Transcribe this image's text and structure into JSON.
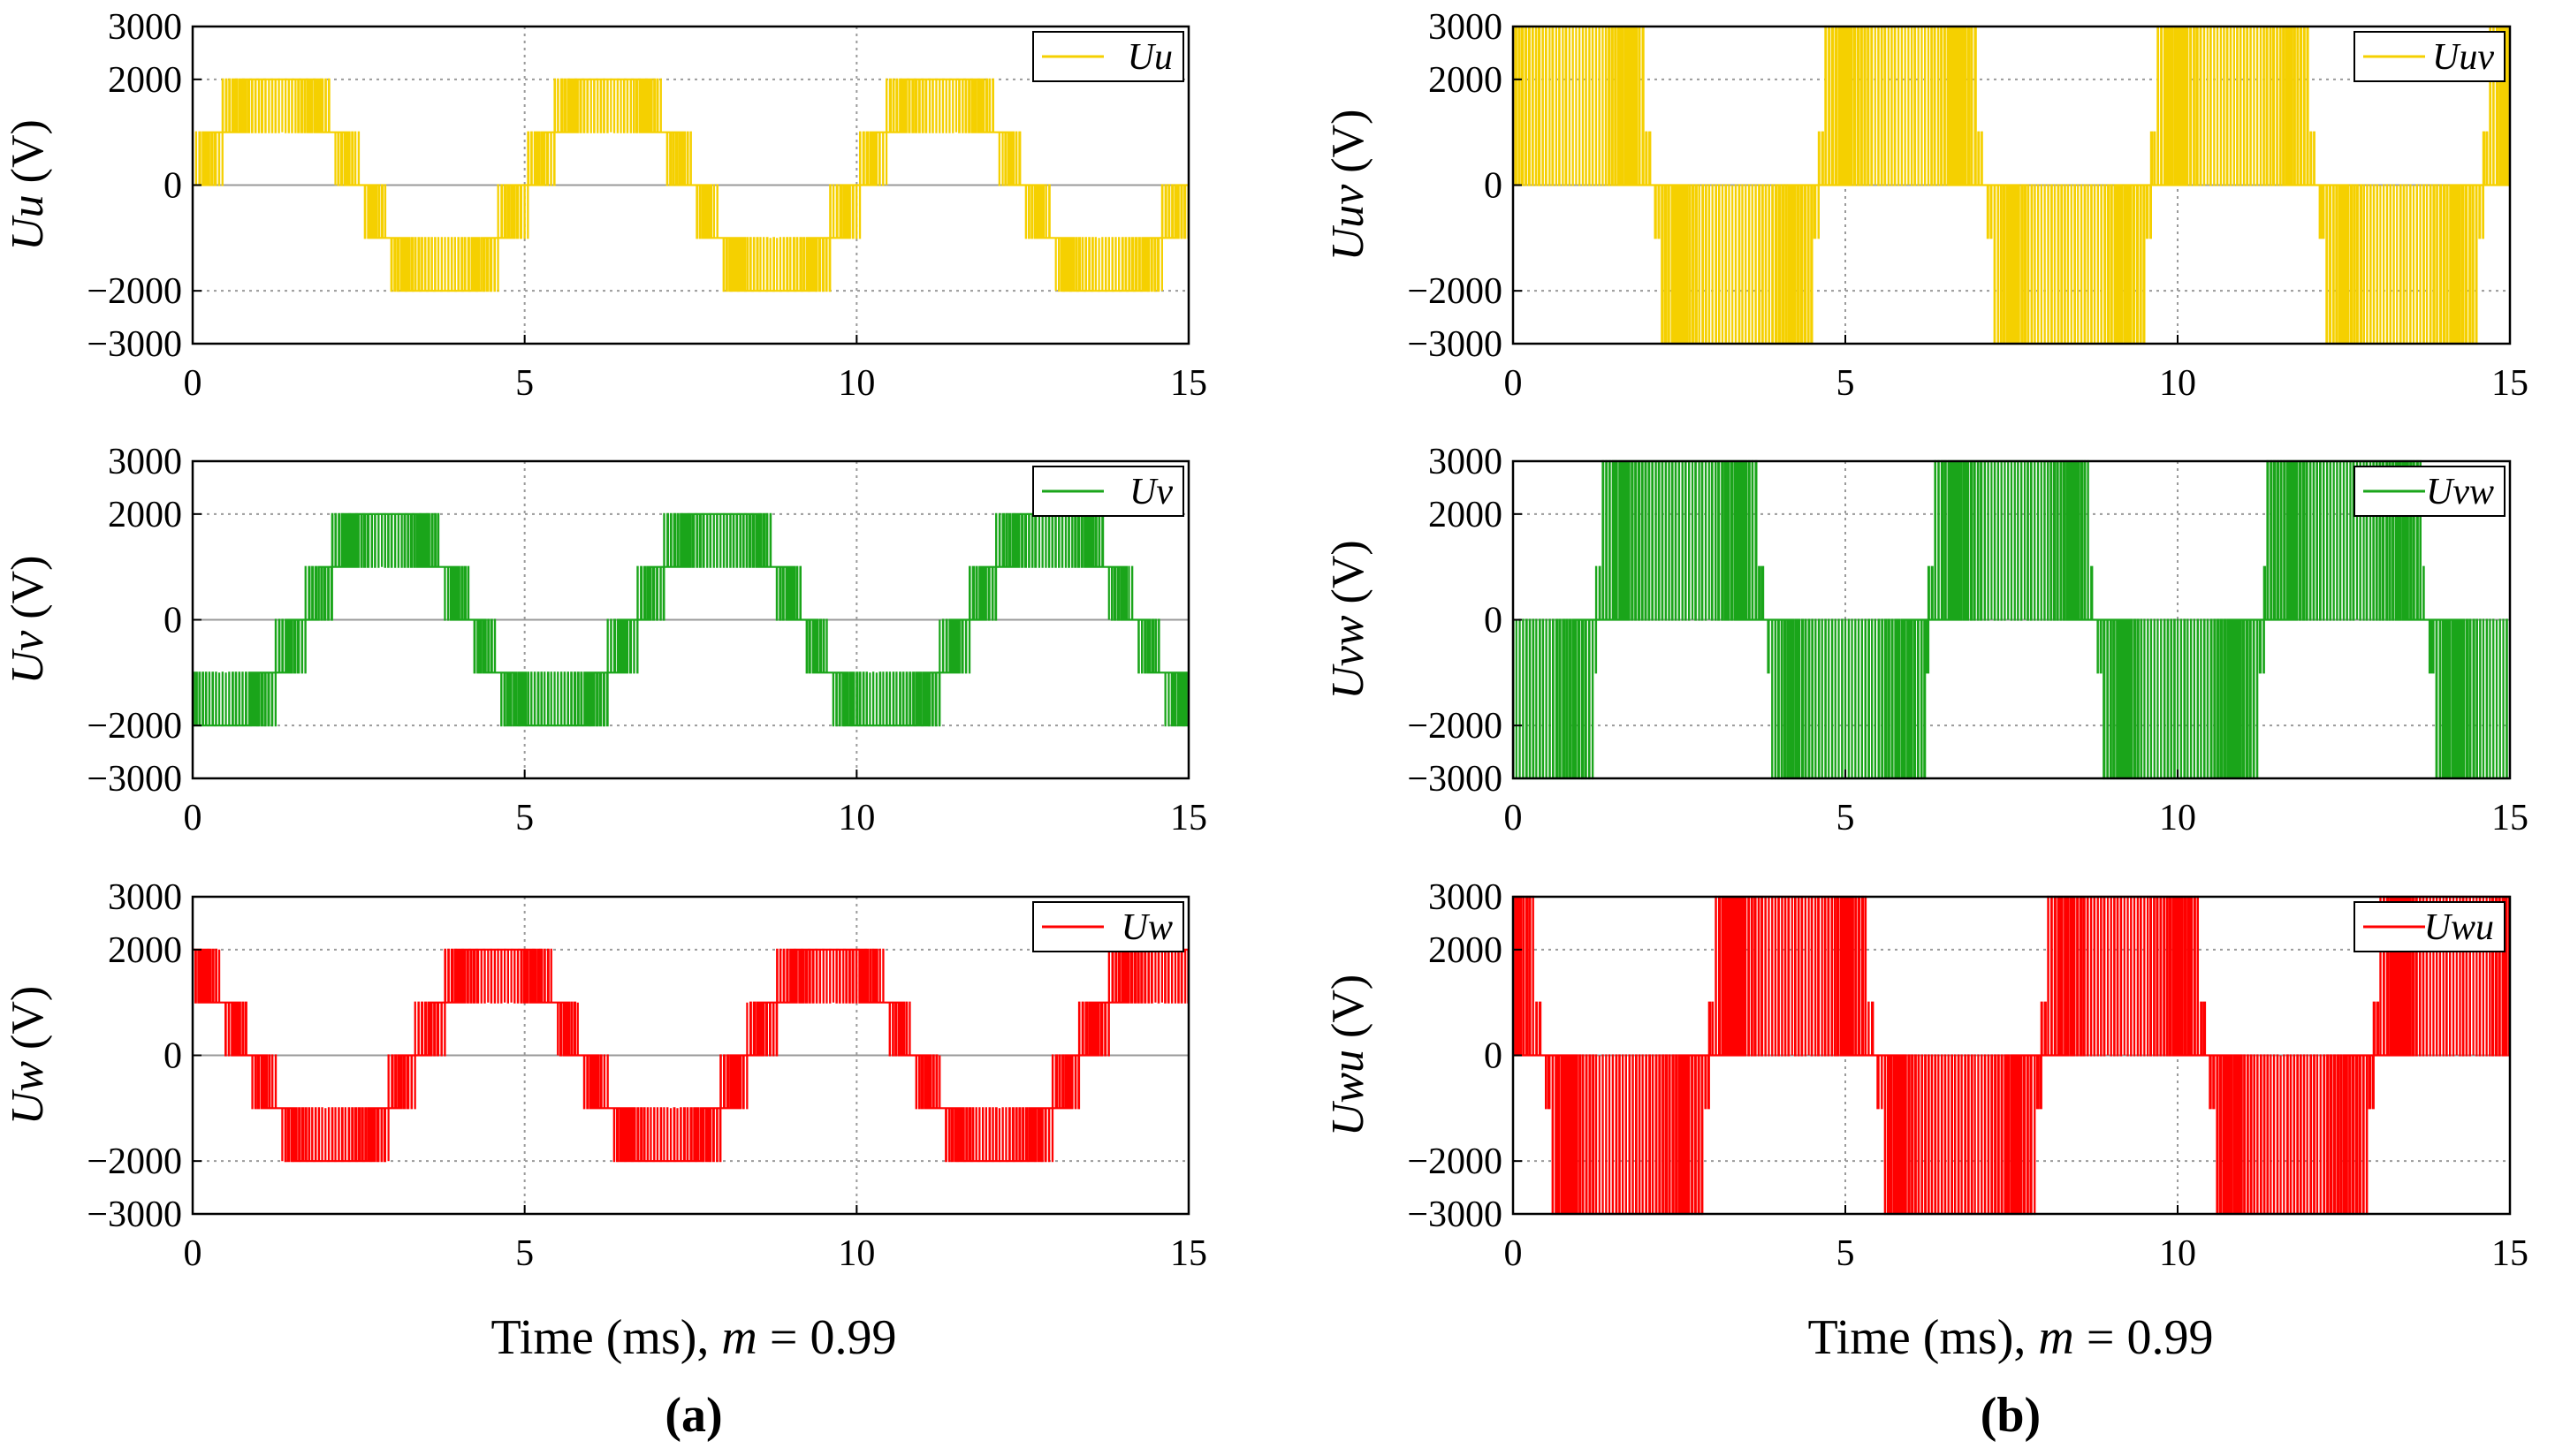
{
  "chart_data": [
    {
      "type": "line",
      "panel": "a",
      "ylabel_main": "Uu",
      "ylabel_unit": " (V)",
      "legend": "Uu",
      "legend_position": "top-right",
      "color": "#f5d000",
      "xlim": [
        0,
        15
      ],
      "ylim": [
        -3000,
        3000
      ],
      "xticks": [
        0,
        5,
        10,
        15
      ],
      "yticks": [
        3000,
        2000,
        0,
        -2000,
        -3000
      ],
      "phase_deg": 0,
      "series": [
        {
          "name": "Uu",
          "waveform": "5-level PWM phase voltage, levels [-2000,-1000,0,1000,2000] V, fundamental 200 Hz (period 5 ms)"
        }
      ]
    },
    {
      "type": "line",
      "panel": "a",
      "ylabel_main": "Uv",
      "ylabel_unit": " (V)",
      "legend": "Uv",
      "legend_position": "top-right",
      "color": "#1aa51a",
      "xlim": [
        0,
        15
      ],
      "ylim": [
        -3000,
        3000
      ],
      "xticks": [
        0,
        5,
        10,
        15
      ],
      "yticks": [
        3000,
        2000,
        0,
        -2000,
        -3000
      ],
      "phase_deg": -120,
      "series": [
        {
          "name": "Uv",
          "waveform": "5-level PWM phase voltage, levels [-2000,-1000,0,1000,2000] V, fundamental 200 Hz"
        }
      ]
    },
    {
      "type": "line",
      "panel": "a",
      "ylabel_main": "Uw",
      "ylabel_unit": " (V)",
      "legend": "Uw",
      "legend_position": "top-right",
      "color": "#ff0000",
      "xlim": [
        0,
        15
      ],
      "ylim": [
        -3000,
        3000
      ],
      "xticks": [
        0,
        5,
        10,
        15
      ],
      "yticks": [
        3000,
        2000,
        0,
        -2000,
        -3000
      ],
      "phase_deg": 120,
      "series": [
        {
          "name": "Uw",
          "waveform": "5-level PWM phase voltage, levels [-2000,-1000,0,1000,2000] V, fundamental 200 Hz"
        }
      ]
    },
    {
      "type": "line",
      "panel": "b",
      "ylabel_main": "Uuv",
      "ylabel_unit": " (V)",
      "legend": "Uuv",
      "legend_position": "top-right",
      "color": "#f5d000",
      "xlim": [
        0,
        15
      ],
      "ylim": [
        -3000,
        3000
      ],
      "xticks": [
        0,
        5,
        10,
        15
      ],
      "yticks": [
        3000,
        2000,
        0,
        -2000,
        -3000
      ],
      "phase_deg": 30,
      "series": [
        {
          "name": "Uuv",
          "waveform": "line-to-line PWM voltage switching between 0 and +/-3000 V, fundamental 200 Hz"
        }
      ]
    },
    {
      "type": "line",
      "panel": "b",
      "ylabel_main": "Uvw",
      "ylabel_unit": " (V)",
      "legend": "Uvw",
      "legend_position": "top-right",
      "color": "#1aa51a",
      "xlim": [
        0,
        15
      ],
      "ylim": [
        -3000,
        3000
      ],
      "xticks": [
        0,
        5,
        10,
        15
      ],
      "yticks": [
        3000,
        2000,
        0,
        -2000,
        -3000
      ],
      "phase_deg": -90,
      "series": [
        {
          "name": "Uvw",
          "waveform": "line-to-line PWM voltage switching between 0 and +/-3000 V, fundamental 200 Hz"
        }
      ]
    },
    {
      "type": "line",
      "panel": "b",
      "ylabel_main": "Uwu",
      "ylabel_unit": " (V)",
      "legend": "Uwu",
      "legend_position": "top-right",
      "color": "#ff0000",
      "xlim": [
        0,
        15
      ],
      "ylim": [
        -3000,
        3000
      ],
      "xticks": [
        0,
        5,
        10,
        15
      ],
      "yticks": [
        3000,
        2000,
        0,
        -2000,
        -3000
      ],
      "phase_deg": 150,
      "series": [
        {
          "name": "Uwu",
          "waveform": "line-to-line PWM voltage switching between 0 and +/-3000 V, fundamental 200 Hz"
        }
      ]
    }
  ],
  "captions": {
    "a": {
      "time_label": "Time (ms), ",
      "m_symbol": "m",
      "m_value": " = 0.99",
      "panel_label": "(a)"
    },
    "b": {
      "time_label": "Time (ms), ",
      "m_symbol": "m",
      "m_value": " = 0.99",
      "panel_label": "(b)"
    }
  }
}
